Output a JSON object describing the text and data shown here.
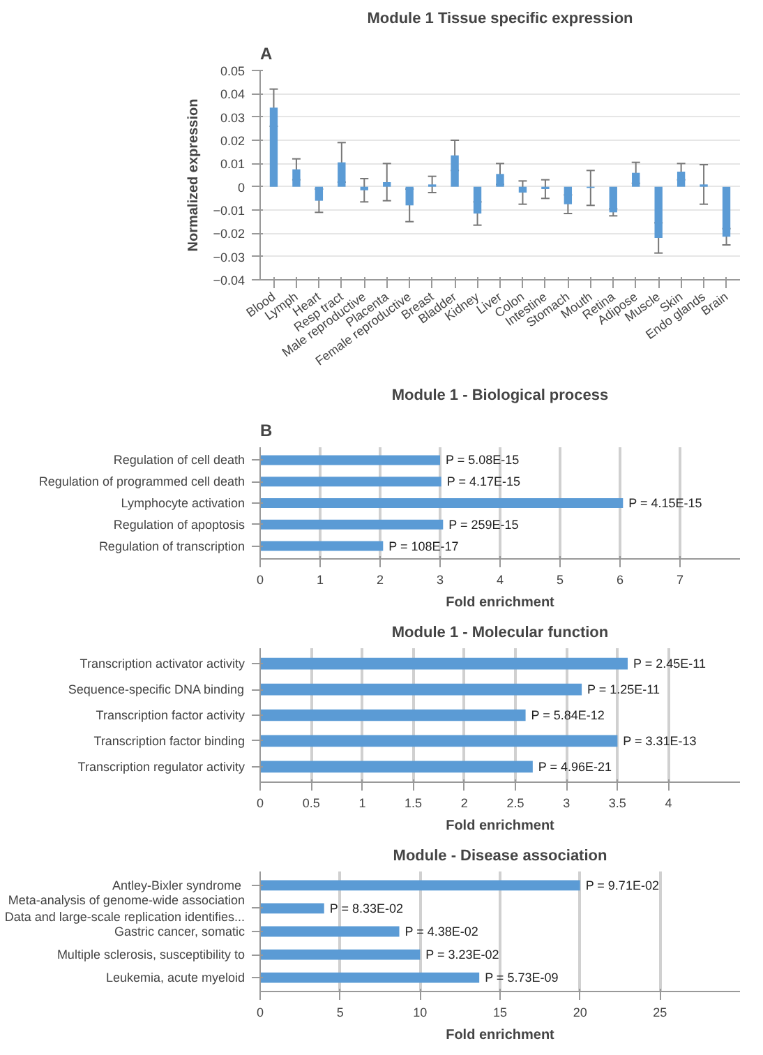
{
  "chart_data": [
    {
      "type": "bar",
      "title": "Module 1 Tissue specific expression",
      "ylabel": "Normalized expression",
      "annotations": [
        "A"
      ],
      "categories": [
        "Blood",
        "Lymph",
        "Heart",
        "Resp tract",
        "Male reproductive",
        "Placenta",
        "Female reproductive",
        "Breast",
        "Bladder",
        "Kidney",
        "Liver",
        "Colon",
        "Intestine",
        "Stomach",
        "Mouth",
        "Retina",
        "Adipose",
        "Muscle",
        "Skin",
        "Endo glands",
        "Brain"
      ],
      "values": [
        0.034,
        0.0075,
        -0.006,
        0.0105,
        -0.0015,
        0.002,
        -0.008,
        0.001,
        0.0135,
        -0.0115,
        0.0055,
        -0.0025,
        -0.001,
        -0.0075,
        -0.0005,
        -0.011,
        0.006,
        -0.022,
        0.0065,
        0.001,
        -0.0215
      ],
      "errors": [
        0.008,
        0.0045,
        0.005,
        0.0085,
        0.005,
        0.008,
        0.007,
        0.0035,
        0.0065,
        0.005,
        0.0045,
        0.005,
        0.004,
        0.004,
        0.0075,
        0.0015,
        0.0045,
        0.0065,
        0.0035,
        0.0085,
        0.0035
      ],
      "color": "#5b9bd5",
      "ylim": [
        -0.04,
        0.05
      ],
      "yticks": [
        {
          "value": -0.04,
          "label": "−0.04"
        },
        {
          "value": -0.03,
          "label": "−0.03"
        },
        {
          "value": -0.02,
          "label": "−0.02"
        },
        {
          "value": -0.01,
          "label": "−0.01"
        },
        0,
        0.01,
        0.02,
        0.03,
        0.04,
        0.05
      ],
      "grid": "y"
    },
    {
      "type": "bar",
      "orientation": "horizontal",
      "title": "Module 1 - Biological process",
      "xlabel": "Fold enrichment",
      "annotations": [
        "B"
      ],
      "categories": [
        "Regulation of cell death",
        "Regulation of programmed cell death",
        "Lymphocyte activation",
        "Regulation of apoptosis",
        "Regulation of transcription"
      ],
      "values": [
        3.0,
        3.02,
        6.05,
        3.05,
        2.05
      ],
      "value_labels": [
        "P = 5.08E-15",
        "P = 4.17E-15",
        "P = 4.15E-15",
        "P = 259E-15",
        "P = 108E-17"
      ],
      "color": "#5b9bd5",
      "xlim": [
        0,
        8
      ],
      "xticks": [
        0,
        1,
        2,
        3,
        4,
        5,
        6,
        7
      ],
      "grid": "x"
    },
    {
      "type": "bar",
      "orientation": "horizontal",
      "title": "Module 1 - Molecular function",
      "xlabel": "Fold enrichment",
      "categories": [
        "Transcription activator activity",
        "Sequence-specific DNA binding",
        "Transcription factor activity",
        "Transcription factor binding",
        "Transcription regulator activity"
      ],
      "values": [
        3.6,
        3.15,
        2.6,
        3.5,
        2.67
      ],
      "value_labels": [
        "P = 2.45E-11",
        "P = 1.25E-11",
        "P = 5.84E-12",
        "P = 3.31E-13",
        "P = 4.96E-21"
      ],
      "color": "#5b9bd5",
      "xlim": [
        0,
        4.7
      ],
      "xticks": [
        0,
        0.5,
        1,
        1.5,
        2,
        2.5,
        3,
        3.5,
        4
      ],
      "grid": "x"
    },
    {
      "type": "bar",
      "orientation": "horizontal",
      "title": "Module - Disease association",
      "xlabel": "Fold enrichment",
      "categories": [
        "Antley-Bixler  syndrome",
        "Meta-analysis of genome-wide association\nData and large-scale replication identifies...",
        "Gastric cancer, somatic",
        "Multiple sclerosis, susceptibility to",
        "Leukemia, acute myeloid"
      ],
      "values": [
        20,
        4,
        8.7,
        10,
        13.7
      ],
      "value_labels": [
        "P = 9.71E-02",
        "P = 8.33E-02",
        "P = 4.38E-02",
        "P = 3.23E-02",
        "P = 5.73E-09"
      ],
      "color": "#5b9bd5",
      "xlim": [
        0,
        30
      ],
      "xticks": [
        0,
        5,
        10,
        15,
        20,
        25
      ],
      "grid": "x"
    }
  ]
}
